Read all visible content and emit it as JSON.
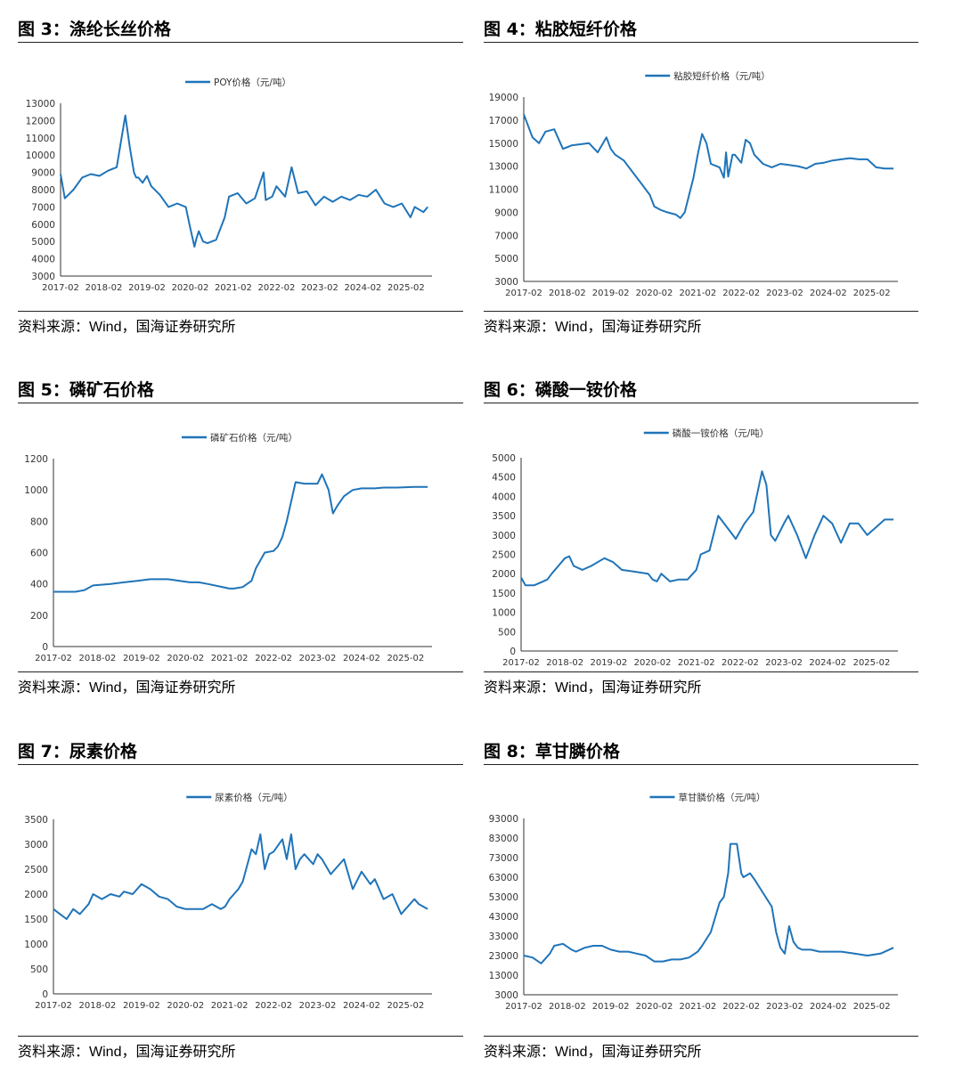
{
  "source_label": "资料来源：",
  "source_name": "Wind，",
  "source_org": "国海证券研究所",
  "line_color": "#1f74b9",
  "x_ticks": [
    "2017-02",
    "2018-02",
    "2019-02",
    "2020-02",
    "2021-02",
    "2022-02",
    "2023-02",
    "2024-02",
    "2025-02"
  ],
  "chart_data": [
    {
      "type": "line",
      "figure_label": "图 3：",
      "figure_title": "涤纶长丝价格",
      "legend": "POY价格（元/吨）",
      "ylim": [
        3000,
        13000
      ],
      "yticks": [
        3000,
        4000,
        5000,
        6000,
        7000,
        8000,
        9000,
        10000,
        11000,
        12000,
        13000
      ],
      "x": [
        2017.0,
        2017.1,
        2017.3,
        2017.5,
        2017.7,
        2017.9,
        2018.1,
        2018.3,
        2018.5,
        2018.6,
        2018.7,
        2018.75,
        2018.8,
        2018.9,
        2019.0,
        2019.1,
        2019.3,
        2019.5,
        2019.7,
        2019.9,
        2020.0,
        2020.1,
        2020.15,
        2020.2,
        2020.3,
        2020.4,
        2020.6,
        2020.8,
        2020.9,
        2021.0,
        2021.1,
        2021.3,
        2021.5,
        2021.7,
        2021.75,
        2021.9,
        2022.0,
        2022.2,
        2022.35,
        2022.5,
        2022.7,
        2022.9,
        2023.1,
        2023.3,
        2023.5,
        2023.7,
        2023.9,
        2024.1,
        2024.3,
        2024.5,
        2024.7,
        2024.9,
        2025.1,
        2025.2,
        2025.4,
        2025.5
      ],
      "y": [
        8900,
        7500,
        8000,
        8700,
        8900,
        8800,
        9100,
        9300,
        12300,
        10500,
        9000,
        8700,
        8700,
        8400,
        8800,
        8200,
        7700,
        7000,
        7200,
        7000,
        5800,
        4700,
        5200,
        5600,
        5000,
        4900,
        5100,
        6400,
        7600,
        7700,
        7800,
        7200,
        7500,
        9000,
        7400,
        7600,
        8200,
        7600,
        9300,
        7800,
        7900,
        7100,
        7600,
        7300,
        7600,
        7400,
        7700,
        7600,
        8000,
        7200,
        7000,
        7200,
        6400,
        7000,
        6700,
        7000
      ]
    },
    {
      "type": "line",
      "figure_label": "图 4：",
      "figure_title": "粘胶短纤价格",
      "legend": "粘胶短纤价格（元/吨）",
      "ylim": [
        3000,
        19000
      ],
      "yticks": [
        3000,
        5000,
        7000,
        9000,
        11000,
        13000,
        15000,
        17000,
        19000
      ],
      "x": [
        2017.0,
        2017.1,
        2017.2,
        2017.35,
        2017.5,
        2017.7,
        2017.9,
        2018.1,
        2018.3,
        2018.5,
        2018.7,
        2018.9,
        2019.0,
        2019.1,
        2019.3,
        2019.5,
        2019.7,
        2019.9,
        2020.0,
        2020.15,
        2020.3,
        2020.5,
        2020.6,
        2020.7,
        2020.8,
        2020.9,
        2021.0,
        2021.1,
        2021.2,
        2021.3,
        2021.5,
        2021.6,
        2021.65,
        2021.7,
        2021.8,
        2021.85,
        2022.0,
        2022.1,
        2022.2,
        2022.3,
        2022.5,
        2022.7,
        2022.9,
        2023.1,
        2023.3,
        2023.5,
        2023.7,
        2023.9,
        2024.1,
        2024.3,
        2024.5,
        2024.7,
        2024.9,
        2025.1,
        2025.3,
        2025.5
      ],
      "y": [
        17500,
        16500,
        15500,
        15000,
        16000,
        16200,
        14500,
        14800,
        14900,
        15000,
        14200,
        15500,
        14500,
        14000,
        13500,
        12500,
        11500,
        10500,
        9500,
        9200,
        9000,
        8800,
        8500,
        9000,
        10500,
        12000,
        14000,
        15800,
        15000,
        13200,
        12900,
        12000,
        14200,
        12100,
        14000,
        14000,
        13300,
        15300,
        15000,
        14000,
        13200,
        12900,
        13200,
        13100,
        13000,
        12800,
        13200,
        13300,
        13500,
        13600,
        13700,
        13600,
        13600,
        12900,
        12800,
        12800
      ]
    },
    {
      "type": "line",
      "figure_label": "图 5：",
      "figure_title": "磷矿石价格",
      "legend": "磷矿石价格（元/吨）",
      "ylim": [
        0,
        1200
      ],
      "yticks": [
        0,
        200,
        400,
        600,
        800,
        1000,
        1200
      ],
      "x": [
        2017.0,
        2017.5,
        2017.7,
        2017.9,
        2018.3,
        2018.6,
        2018.9,
        2019.2,
        2019.4,
        2019.6,
        2020.1,
        2020.3,
        2020.5,
        2021.0,
        2021.1,
        2021.3,
        2021.5,
        2021.6,
        2021.8,
        2022.0,
        2022.1,
        2022.2,
        2022.3,
        2022.5,
        2022.7,
        2022.8,
        2023.0,
        2023.1,
        2023.25,
        2023.35,
        2023.45,
        2023.6,
        2023.8,
        2024.0,
        2024.3,
        2024.5,
        2024.8,
        2025.2,
        2025.5
      ],
      "y": [
        350,
        350,
        360,
        390,
        400,
        410,
        420,
        430,
        430,
        430,
        410,
        410,
        400,
        370,
        370,
        380,
        420,
        500,
        600,
        610,
        640,
        700,
        800,
        1050,
        1040,
        1040,
        1040,
        1100,
        1000,
        850,
        900,
        960,
        1000,
        1010,
        1010,
        1015,
        1015,
        1020,
        1020
      ]
    },
    {
      "type": "line",
      "figure_label": "图 6：",
      "figure_title": "磷酸一铵价格",
      "legend": "磷酸一铵价格（元/吨）",
      "ylim": [
        0,
        5000
      ],
      "yticks": [
        0,
        500,
        1000,
        1500,
        2000,
        2500,
        3000,
        3500,
        4000,
        4500,
        5000
      ],
      "x": [
        2017.0,
        2017.1,
        2017.3,
        2017.5,
        2017.6,
        2017.7,
        2018.0,
        2018.1,
        2018.2,
        2018.4,
        2018.6,
        2018.9,
        2019.1,
        2019.3,
        2019.6,
        2019.9,
        2020.0,
        2020.1,
        2020.2,
        2020.4,
        2020.6,
        2020.8,
        2021.0,
        2021.1,
        2021.3,
        2021.5,
        2021.7,
        2021.9,
        2022.1,
        2022.3,
        2022.5,
        2022.6,
        2022.7,
        2022.8,
        2023.0,
        2023.1,
        2023.3,
        2023.5,
        2023.7,
        2023.9,
        2024.1,
        2024.3,
        2024.5,
        2024.7,
        2024.9,
        2025.1,
        2025.3,
        2025.5
      ],
      "y": [
        1900,
        1700,
        1700,
        1800,
        1850,
        2000,
        2400,
        2450,
        2200,
        2100,
        2200,
        2400,
        2300,
        2100,
        2050,
        2000,
        1850,
        1800,
        2000,
        1800,
        1850,
        1850,
        2100,
        2500,
        2600,
        3500,
        3200,
        2900,
        3300,
        3600,
        4650,
        4300,
        3000,
        2850,
        3300,
        3500,
        3000,
        2400,
        3000,
        3500,
        3300,
        2800,
        3300,
        3300,
        3000,
        3200,
        3400,
        3400
      ]
    },
    {
      "type": "line",
      "figure_label": "图 7：",
      "figure_title": "尿素价格",
      "legend": "尿素价格（元/吨）",
      "ylim": [
        0,
        3500
      ],
      "yticks": [
        0,
        500,
        1000,
        1500,
        2000,
        2500,
        3000,
        3500
      ],
      "x": [
        2017.0,
        2017.15,
        2017.3,
        2017.45,
        2017.6,
        2017.8,
        2017.9,
        2018.1,
        2018.3,
        2018.5,
        2018.6,
        2018.8,
        2019.0,
        2019.2,
        2019.4,
        2019.6,
        2019.8,
        2020.0,
        2020.2,
        2020.4,
        2020.6,
        2020.8,
        2020.9,
        2021.0,
        2021.2,
        2021.3,
        2021.5,
        2021.6,
        2021.7,
        2021.8,
        2021.9,
        2022.0,
        2022.2,
        2022.3,
        2022.4,
        2022.5,
        2022.6,
        2022.7,
        2022.9,
        2023.0,
        2023.1,
        2023.3,
        2023.5,
        2023.6,
        2023.8,
        2024.0,
        2024.2,
        2024.3,
        2024.5,
        2024.7,
        2024.9,
        2025.0,
        2025.2,
        2025.3,
        2025.5
      ],
      "y": [
        1700,
        1600,
        1500,
        1700,
        1600,
        1800,
        2000,
        1900,
        2000,
        1950,
        2050,
        2000,
        2200,
        2100,
        1950,
        1900,
        1750,
        1700,
        1700,
        1700,
        1800,
        1700,
        1750,
        1900,
        2100,
        2250,
        2900,
        2800,
        3200,
        2500,
        2800,
        2850,
        3100,
        2700,
        3200,
        2500,
        2700,
        2800,
        2600,
        2800,
        2700,
        2400,
        2600,
        2700,
        2100,
        2450,
        2200,
        2300,
        1900,
        2000,
        1600,
        1700,
        1900,
        1800,
        1700
      ]
    },
    {
      "type": "line",
      "figure_label": "图 8：",
      "figure_title": "草甘膦价格",
      "legend": "草甘膦价格（元/吨）",
      "ylim": [
        3000,
        93000
      ],
      "yticks": [
        3000,
        13000,
        23000,
        33000,
        43000,
        53000,
        63000,
        73000,
        83000,
        93000
      ],
      "x": [
        2017.0,
        2017.2,
        2017.4,
        2017.6,
        2017.7,
        2017.9,
        2018.1,
        2018.2,
        2018.4,
        2018.6,
        2018.8,
        2019.0,
        2019.2,
        2019.4,
        2019.6,
        2019.8,
        2020.0,
        2020.2,
        2020.4,
        2020.6,
        2020.8,
        2021.0,
        2021.1,
        2021.3,
        2021.5,
        2021.6,
        2021.7,
        2021.75,
        2021.9,
        2022.0,
        2022.05,
        2022.2,
        2022.3,
        2022.5,
        2022.7,
        2022.8,
        2022.9,
        2023.0,
        2023.1,
        2023.2,
        2023.3,
        2023.4,
        2023.6,
        2023.8,
        2024.0,
        2024.3,
        2024.6,
        2024.9,
        2025.2,
        2025.5
      ],
      "y": [
        23000,
        22000,
        19000,
        24000,
        28000,
        29000,
        26000,
        25000,
        27000,
        28000,
        28000,
        26000,
        25000,
        25000,
        24000,
        23000,
        20000,
        20000,
        21000,
        21000,
        22000,
        25000,
        28000,
        35000,
        50000,
        53000,
        65000,
        80000,
        80000,
        65000,
        63000,
        65000,
        62000,
        55000,
        48000,
        35000,
        27000,
        24000,
        38000,
        30000,
        27000,
        26000,
        26000,
        25000,
        25000,
        25000,
        24000,
        23000,
        24000,
        27000
      ]
    }
  ]
}
